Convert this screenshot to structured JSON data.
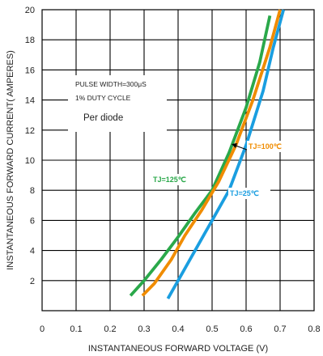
{
  "chart_data": {
    "type": "line",
    "xlabel": "INSTANTANEOUS FORWARD VOLTAGE (V)",
    "ylabel": "INSTANTANEOUS FORWARD CURRENT( AMPERES)",
    "xlim": [
      0,
      0.8
    ],
    "ylim": [
      0,
      20
    ],
    "xticks": [
      "0",
      "0.1",
      "0.2",
      "0.3",
      "0.4",
      "0.5",
      "0.6",
      "0.7",
      "0.8"
    ],
    "yticks": [
      "2",
      "4",
      "6",
      "8",
      "10",
      "12",
      "14",
      "16",
      "18",
      "20"
    ],
    "grid": true,
    "annotations": [
      "PULSE WIDTH=300μS",
      "1% DUTY CYCLE",
      "Per diode"
    ],
    "series": [
      {
        "name": "TJ=125℃",
        "color": "#2aa84a",
        "points": [
          [
            0.26,
            1.0
          ],
          [
            0.3,
            2.0
          ],
          [
            0.35,
            3.4
          ],
          [
            0.4,
            4.9
          ],
          [
            0.45,
            6.5
          ],
          [
            0.5,
            8.0
          ],
          [
            0.55,
            10.5
          ],
          [
            0.6,
            13.5
          ],
          [
            0.64,
            16.5
          ],
          [
            0.67,
            19.6
          ]
        ]
      },
      {
        "name": "TJ=100℃",
        "color": "#f08c00",
        "points": [
          [
            0.295,
            1.0
          ],
          [
            0.33,
            1.8
          ],
          [
            0.38,
            3.4
          ],
          [
            0.42,
            5.0
          ],
          [
            0.47,
            6.7
          ],
          [
            0.52,
            8.6
          ],
          [
            0.57,
            11.0
          ],
          [
            0.62,
            14.0
          ],
          [
            0.67,
            17.5
          ],
          [
            0.7,
            20.0
          ]
        ]
      },
      {
        "name": "TJ=25℃",
        "color": "#1a9ee0",
        "points": [
          [
            0.37,
            0.8
          ],
          [
            0.4,
            2.0
          ],
          [
            0.45,
            4.0
          ],
          [
            0.5,
            6.0
          ],
          [
            0.55,
            8.0
          ],
          [
            0.6,
            11.0
          ],
          [
            0.65,
            14.6
          ],
          [
            0.68,
            17.5
          ],
          [
            0.71,
            20.0
          ]
        ]
      }
    ]
  }
}
